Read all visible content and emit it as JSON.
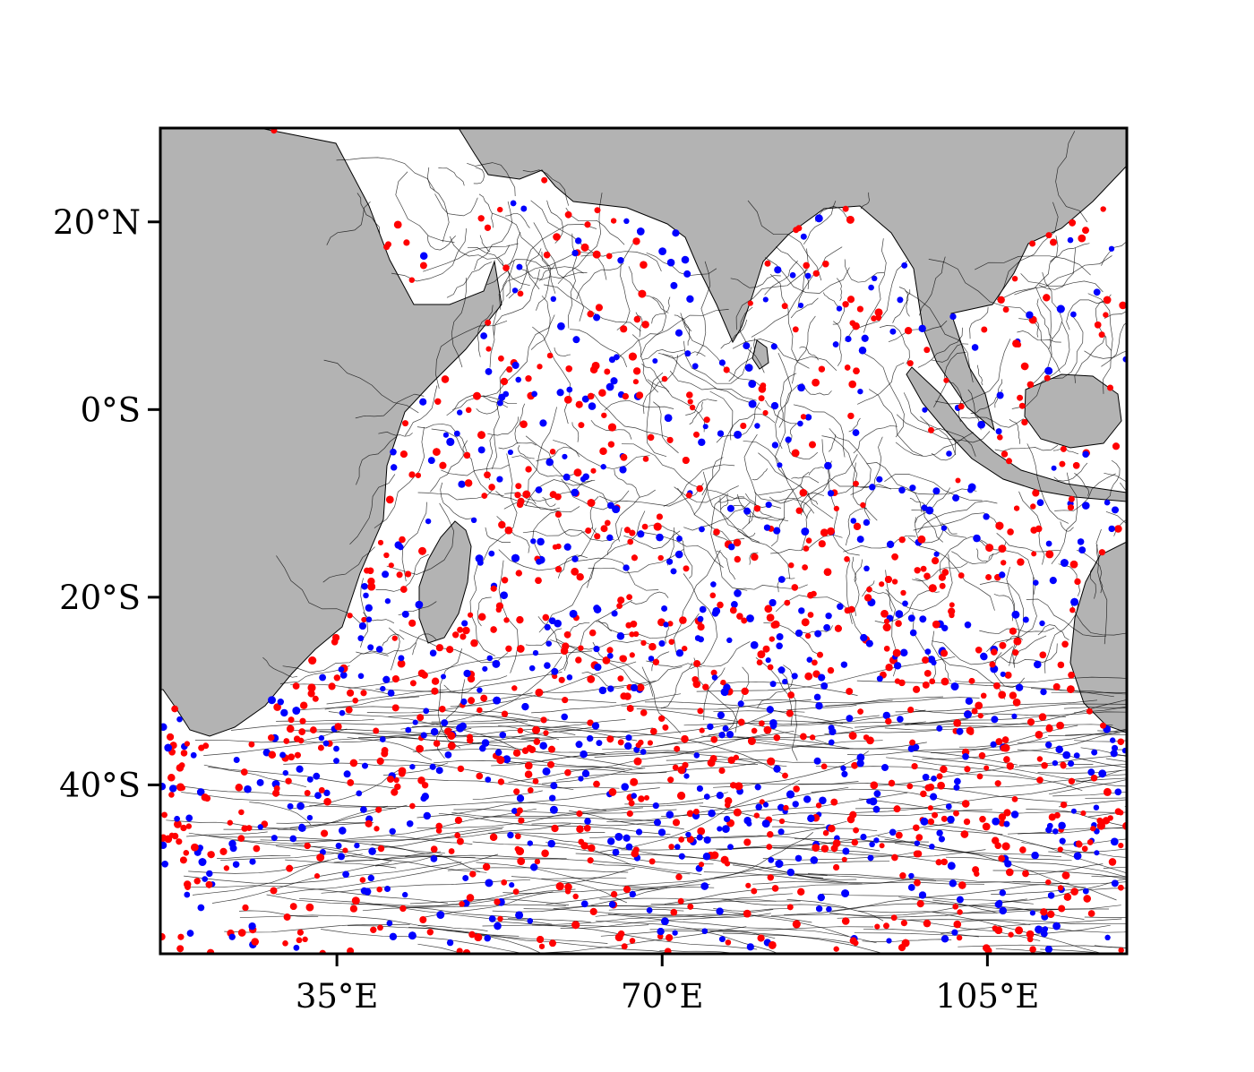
{
  "map": {
    "colors": {
      "land": "#b3b3b3",
      "ocean": "#ffffff",
      "trajectory": "#000000",
      "marker_a": "#ff0000",
      "marker_b": "#0000ff",
      "frame": "#000000"
    },
    "extent": {
      "lon": [
        16,
        120
      ],
      "lat": [
        -58,
        30
      ]
    },
    "lat_ticks": [
      {
        "value": 20,
        "label": "20°N"
      },
      {
        "value": 0,
        "label": "0°S"
      },
      {
        "value": -20,
        "label": "20°S"
      },
      {
        "value": -40,
        "label": "40°S"
      }
    ],
    "lon_ticks": [
      {
        "value": 35,
        "label": "35°E"
      },
      {
        "value": 70,
        "label": "70°E"
      },
      {
        "value": 105,
        "label": "105°E"
      }
    ]
  }
}
